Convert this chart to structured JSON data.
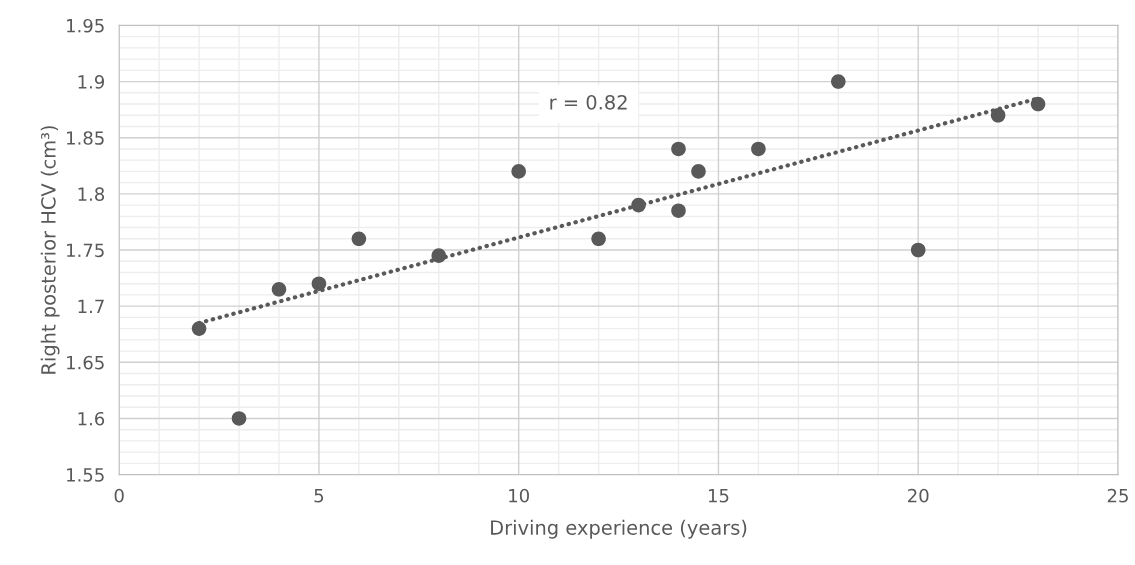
{
  "chart_data": {
    "type": "scatter",
    "xlabel": "Driving experience (years)",
    "ylabel": "Right posterior HCV (cm³)",
    "annotations": [
      "r = 0.82"
    ],
    "series": [
      {
        "color": "#595959",
        "marker": "circle",
        "x": [
          2,
          3,
          4,
          5,
          6,
          8,
          10,
          12,
          13,
          14,
          14,
          14.5,
          16,
          18,
          20,
          22,
          23
        ],
        "values": [
          1.68,
          1.6,
          1.715,
          1.72,
          1.76,
          1.745,
          1.82,
          1.76,
          1.79,
          1.84,
          1.785,
          1.82,
          1.84,
          1.9,
          1.75,
          1.87,
          1.88
        ]
      },
      {
        "type": "line",
        "color": "#595959",
        "line_style": "dotted",
        "marker": "none",
        "x": [
          2,
          23
        ],
        "values": [
          1.685,
          1.885
        ]
      }
    ],
    "xlim": [
      0,
      25
    ],
    "xticks": [
      0,
      5,
      10,
      15,
      20,
      25
    ],
    "ylim": [
      1.55,
      1.95
    ],
    "yticks": [
      1.55,
      1.6,
      1.65,
      1.7,
      1.75,
      1.8,
      1.85,
      1.9,
      1.95
    ],
    "grid": true,
    "legend": false
  }
}
